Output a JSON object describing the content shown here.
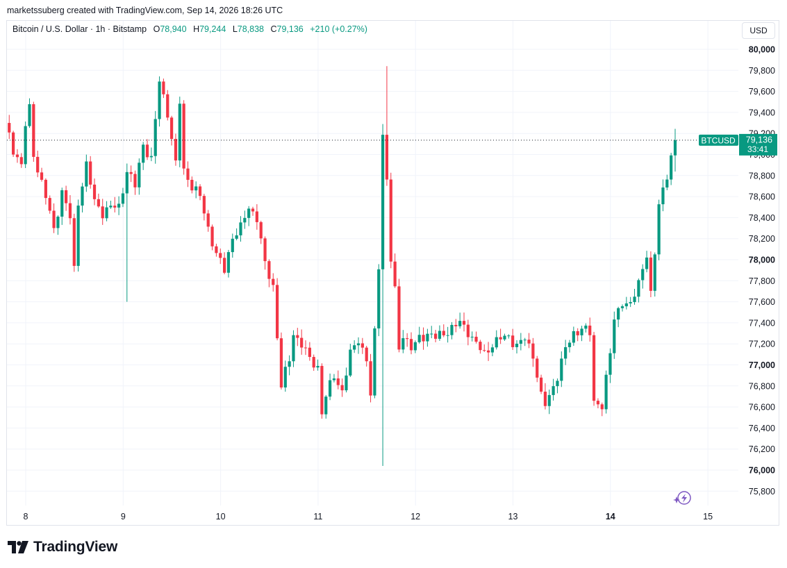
{
  "header": {
    "credit": "marketssuberg created with TradingView.com, Sep 14, 2026 18:26 UTC"
  },
  "legend": {
    "symbol": "Bitcoin / U.S. Dollar · 1h · Bitstamp",
    "o_label": "O",
    "o_value": "78,940",
    "h_label": "H",
    "h_value": "79,244",
    "l_label": "L",
    "l_value": "78,838",
    "c_label": "C",
    "c_value": "79,136",
    "change": "+210 (+0.27%)"
  },
  "currency_button": "USD",
  "price_tag": {
    "ticker": "BTCUSD",
    "price": "79,136",
    "countdown": "33:41"
  },
  "footer": {
    "brand": "TradingView"
  },
  "colors": {
    "up": "#089981",
    "down": "#f23645",
    "grid": "#f0f3fa",
    "text": "#131722",
    "muted": "#434651",
    "lightning": "#7e57c2"
  },
  "chart_data": {
    "type": "candlestick",
    "interval": "1h",
    "ylim": [
      75700,
      80200
    ],
    "y_ticks": [
      {
        "value": 80000,
        "label": "80,000",
        "bold": true
      },
      {
        "value": 79800,
        "label": "79,800"
      },
      {
        "value": 79600,
        "label": "79,600"
      },
      {
        "value": 79400,
        "label": "79,400"
      },
      {
        "value": 79200,
        "label": "79,200"
      },
      {
        "value": 79000,
        "label": "79,000"
      },
      {
        "value": 78800,
        "label": "78,800"
      },
      {
        "value": 78600,
        "label": "78,600"
      },
      {
        "value": 78400,
        "label": "78,400"
      },
      {
        "value": 78200,
        "label": "78,200"
      },
      {
        "value": 78000,
        "label": "78,000",
        "bold": true
      },
      {
        "value": 77800,
        "label": "77,800"
      },
      {
        "value": 77600,
        "label": "77,600"
      },
      {
        "value": 77400,
        "label": "77,400"
      },
      {
        "value": 77200,
        "label": "77,200"
      },
      {
        "value": 77000,
        "label": "77,000",
        "bold": true
      },
      {
        "value": 76800,
        "label": "76,800"
      },
      {
        "value": 76600,
        "label": "76,600"
      },
      {
        "value": 76400,
        "label": "76,400"
      },
      {
        "value": 76200,
        "label": "76,200"
      },
      {
        "value": 76000,
        "label": "76,000",
        "bold": true
      },
      {
        "value": 75800,
        "label": "75,800"
      }
    ],
    "x_ticks": [
      {
        "day": 8,
        "label": "8"
      },
      {
        "day": 9,
        "label": "9"
      },
      {
        "day": 10,
        "label": "10"
      },
      {
        "day": 11,
        "label": "11"
      },
      {
        "day": 12,
        "label": "12"
      },
      {
        "day": 13,
        "label": "13"
      },
      {
        "day": 14,
        "label": "14",
        "bold": true
      },
      {
        "day": 15,
        "label": "15"
      }
    ],
    "first_day": 7.81,
    "last_price": 79136,
    "anchors": [
      [
        0,
        79300
      ],
      [
        2,
        79050
      ],
      [
        4,
        78900
      ],
      [
        5,
        79280
      ],
      [
        6,
        79430
      ],
      [
        7,
        79000
      ],
      [
        10,
        78600
      ],
      [
        12,
        78280
      ],
      [
        14,
        78650
      ],
      [
        16,
        78400
      ],
      [
        17,
        77900
      ],
      [
        18,
        78550
      ],
      [
        20,
        78900
      ],
      [
        22,
        78550
      ],
      [
        24,
        78450
      ],
      [
        26,
        78500
      ],
      [
        28,
        78500
      ],
      [
        30,
        78850
      ],
      [
        32,
        78700
      ],
      [
        34,
        79100
      ],
      [
        36,
        78950
      ],
      [
        38,
        79700
      ],
      [
        40,
        79400
      ],
      [
        42,
        78900
      ],
      [
        43,
        79500
      ],
      [
        44,
        78850
      ],
      [
        46,
        78700
      ],
      [
        48,
        78600
      ],
      [
        50,
        78300
      ],
      [
        52,
        78050
      ],
      [
        54,
        77900
      ],
      [
        56,
        78220
      ],
      [
        58,
        78300
      ],
      [
        60,
        78500
      ],
      [
        62,
        78400
      ],
      [
        64,
        77950
      ],
      [
        66,
        77750
      ],
      [
        68,
        76800
      ],
      [
        70,
        77050
      ],
      [
        71,
        77300
      ],
      [
        73,
        77200
      ],
      [
        75,
        77050
      ],
      [
        77,
        76980
      ],
      [
        78,
        76550
      ],
      [
        79,
        76700
      ],
      [
        81,
        76900
      ],
      [
        83,
        76750
      ],
      [
        85,
        77100
      ],
      [
        87,
        77250
      ],
      [
        89,
        77050
      ],
      [
        90,
        76700
      ],
      [
        91,
        77300
      ],
      [
        92,
        77950
      ],
      [
        93,
        79200
      ],
      [
        94,
        78750
      ],
      [
        95,
        78000
      ],
      [
        96,
        77700
      ],
      [
        97,
        77150
      ],
      [
        98,
        77300
      ],
      [
        100,
        77150
      ],
      [
        102,
        77250
      ],
      [
        104,
        77300
      ],
      [
        106,
        77260
      ],
      [
        108,
        77300
      ],
      [
        110,
        77350
      ],
      [
        112,
        77400
      ],
      [
        114,
        77320
      ],
      [
        116,
        77200
      ],
      [
        118,
        77100
      ],
      [
        120,
        77200
      ],
      [
        122,
        77250
      ],
      [
        124,
        77270
      ],
      [
        126,
        77180
      ],
      [
        128,
        77250
      ],
      [
        130,
        77100
      ],
      [
        132,
        76700
      ],
      [
        133,
        76620
      ],
      [
        134,
        76700
      ],
      [
        136,
        76900
      ],
      [
        138,
        77150
      ],
      [
        140,
        77300
      ],
      [
        142,
        77350
      ],
      [
        144,
        77300
      ],
      [
        145,
        76650
      ],
      [
        147,
        76620
      ],
      [
        149,
        77100
      ],
      [
        150,
        77450
      ],
      [
        152,
        77600
      ],
      [
        154,
        77550
      ],
      [
        156,
        77800
      ],
      [
        158,
        78050
      ],
      [
        159,
        77650
      ],
      [
        160,
        78050
      ],
      [
        161,
        78550
      ],
      [
        163,
        78800
      ],
      [
        165,
        79136
      ]
    ]
  }
}
